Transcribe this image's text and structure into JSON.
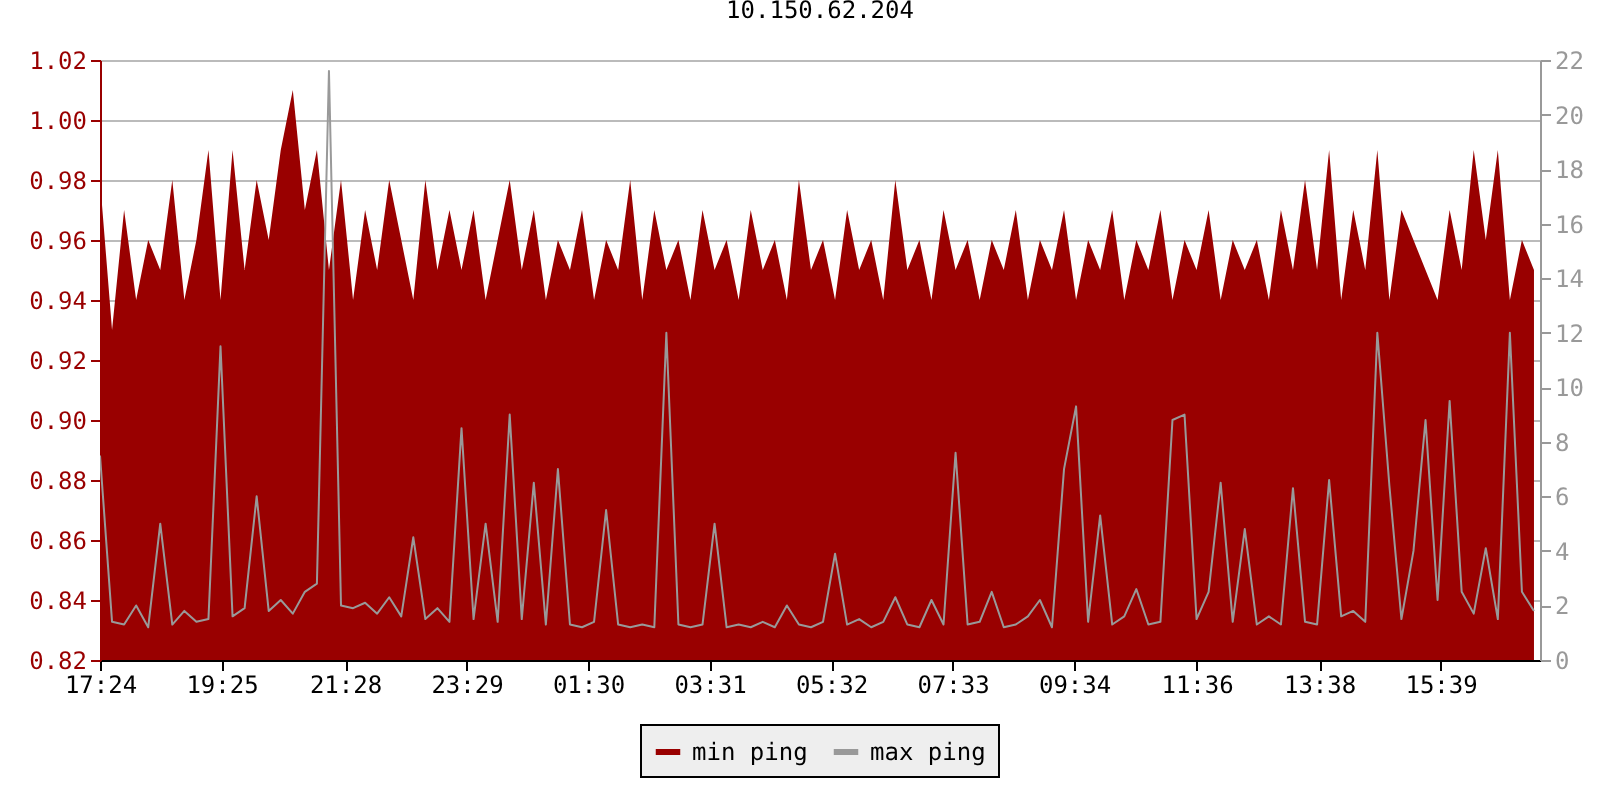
{
  "chart_data": {
    "type": "area",
    "title": "10.150.62.204",
    "x": [
      "--01-01T17:24",
      "--01-01T17:36",
      "--01-01T17:48",
      "--01-01T18:00",
      "--01-01T18:12",
      "--01-01T18:24",
      "--01-01T18:36",
      "--01-01T18:48",
      "--01-01T19:00",
      "--01-01T19:12",
      "--01-01T19:24",
      "--01-01T19:36",
      "--01-01T19:48",
      "--01-01T20:00",
      "--01-01T20:12",
      "--01-01T20:24",
      "--01-01T20:36",
      "--01-01T20:48",
      "--01-01T21:00",
      "--01-01T21:12",
      "--01-01T21:24",
      "--01-01T21:36",
      "--01-01T21:48",
      "--01-01T22:00",
      "--01-01T22:12",
      "--01-01T22:24",
      "--01-01T22:36",
      "--01-01T22:48",
      "--01-01T23:00",
      "--01-01T23:12",
      "--01-01T23:24",
      "--01-01T23:36",
      "--01-01T23:48",
      "--01-02T00:00",
      "--01-02T00:12",
      "--01-02T00:24",
      "--01-02T00:36",
      "--01-02T00:48",
      "--01-02T01:00",
      "--01-02T01:12",
      "--01-02T01:24",
      "--01-02T01:36",
      "--01-02T01:48",
      "--01-02T02:00",
      "--01-02T02:12",
      "--01-02T02:24",
      "--01-02T02:36",
      "--01-02T02:48",
      "--01-02T03:00",
      "--01-02T03:12",
      "--01-02T03:24",
      "--01-02T03:36",
      "--01-02T03:48",
      "--01-02T04:00",
      "--01-02T04:12",
      "--01-02T04:24",
      "--01-02T04:36",
      "--01-02T04:48",
      "--01-02T05:00",
      "--01-02T05:12",
      "--01-02T05:24",
      "--01-02T05:36",
      "--01-02T05:48",
      "--01-02T06:00",
      "--01-02T06:12",
      "--01-02T06:24",
      "--01-02T06:36",
      "--01-02T06:48",
      "--01-02T07:00",
      "--01-02T07:12",
      "--01-02T07:24",
      "--01-02T07:36",
      "--01-02T07:48",
      "--01-02T08:00",
      "--01-02T08:12",
      "--01-02T08:24",
      "--01-02T08:36",
      "--01-02T08:48",
      "--01-02T09:00",
      "--01-02T09:12",
      "--01-02T09:24",
      "--01-02T09:36",
      "--01-02T09:48",
      "--01-02T10:00",
      "--01-02T10:12",
      "--01-02T10:24",
      "--01-02T10:36",
      "--01-02T10:48",
      "--01-02T11:00",
      "--01-02T11:12",
      "--01-02T11:24",
      "--01-02T11:36",
      "--01-02T11:48",
      "--01-02T12:00",
      "--01-02T12:12",
      "--01-02T12:24",
      "--01-02T12:36",
      "--01-02T12:48",
      "--01-02T13:00",
      "--01-02T13:12",
      "--01-02T13:24",
      "--01-02T13:36",
      "--01-02T13:48",
      "--01-02T14:00",
      "--01-02T14:12",
      "--01-02T14:24",
      "--01-02T14:36",
      "--01-02T14:48",
      "--01-02T15:00",
      "--01-02T15:12",
      "--01-02T15:24",
      "--01-02T15:36",
      "--01-02T15:48",
      "--01-02T16:00",
      "--01-02T16:12",
      "--01-02T16:24",
      "--01-02T16:36",
      "--01-02T16:48",
      "--01-02T17:00",
      "--01-02T17:12"
    ],
    "series": [
      {
        "name": "min ping",
        "color": "#990000",
        "values": [
          0.98,
          0.93,
          0.97,
          0.94,
          0.96,
          0.95,
          0.98,
          0.94,
          0.96,
          0.99,
          0.94,
          0.99,
          0.95,
          0.98,
          0.96,
          0.99,
          1.01,
          0.97,
          0.99,
          0.95,
          0.98,
          0.94,
          0.97,
          0.95,
          0.98,
          0.96,
          0.94,
          0.98,
          0.95,
          0.97,
          0.95,
          0.97,
          0.94,
          0.96,
          0.98,
          0.95,
          0.97,
          0.94,
          0.96,
          0.95,
          0.97,
          0.94,
          0.96,
          0.95,
          0.98,
          0.94,
          0.97,
          0.95,
          0.96,
          0.94,
          0.97,
          0.95,
          0.96,
          0.94,
          0.97,
          0.95,
          0.96,
          0.94,
          0.98,
          0.95,
          0.96,
          0.94,
          0.97,
          0.95,
          0.96,
          0.94,
          0.98,
          0.95,
          0.96,
          0.94,
          0.97,
          0.95,
          0.96,
          0.94,
          0.96,
          0.95,
          0.97,
          0.94,
          0.96,
          0.95,
          0.97,
          0.94,
          0.96,
          0.95,
          0.97,
          0.94,
          0.96,
          0.95,
          0.97,
          0.94,
          0.96,
          0.95,
          0.97,
          0.94,
          0.96,
          0.95,
          0.96,
          0.94,
          0.97,
          0.95,
          0.98,
          0.95,
          0.99,
          0.94,
          0.97,
          0.95,
          0.99,
          0.94,
          0.97,
          0.96,
          0.95,
          0.94,
          0.97,
          0.95,
          0.99,
          0.96,
          0.99,
          0.94,
          0.96,
          0.95
        ]
      },
      {
        "name": "max ping",
        "color": "#999999",
        "type": "line",
        "axis": "y2",
        "values": [
          7.5,
          1.4,
          1.3,
          2.0,
          1.2,
          5.0,
          1.3,
          1.8,
          1.4,
          1.5,
          11.5,
          1.6,
          1.9,
          6.0,
          1.8,
          2.2,
          1.7,
          2.5,
          2.8,
          21.6,
          2.0,
          1.9,
          2.1,
          1.7,
          2.3,
          1.6,
          4.5,
          1.5,
          1.9,
          1.4,
          8.5,
          1.5,
          5.0,
          1.4,
          9.0,
          1.5,
          6.5,
          1.3,
          7.0,
          1.3,
          1.2,
          1.4,
          5.5,
          1.3,
          1.2,
          1.3,
          1.2,
          12.0,
          1.3,
          1.2,
          1.3,
          5.0,
          1.2,
          1.3,
          1.2,
          1.4,
          1.2,
          2.0,
          1.3,
          1.2,
          1.4,
          3.9,
          1.3,
          1.5,
          1.2,
          1.4,
          2.3,
          1.3,
          1.2,
          2.2,
          1.3,
          7.6,
          1.3,
          1.4,
          2.5,
          1.2,
          1.3,
          1.6,
          2.2,
          1.2,
          7.0,
          9.3,
          1.4,
          5.3,
          1.3,
          1.6,
          2.6,
          1.3,
          1.4,
          8.8,
          9.0,
          1.5,
          2.5,
          6.5,
          1.4,
          4.8,
          1.3,
          1.6,
          1.3,
          6.3,
          1.4,
          1.3,
          6.6,
          1.6,
          1.8,
          1.4,
          12.0,
          6.4,
          1.5,
          4.0,
          8.8,
          2.2,
          9.5,
          2.5,
          1.7,
          4.1,
          1.5,
          12.0,
          2.5,
          1.8
        ]
      }
    ],
    "xlim": [
      "--01-01T17:24",
      "--01-02T17:18"
    ],
    "xticks": [
      {
        "value": "--01-01T17:24",
        "label": "17:24"
      },
      {
        "value": "--01-01T19:25",
        "label": "19:25"
      },
      {
        "value": "--01-01T21:28",
        "label": "21:28"
      },
      {
        "value": "--01-01T23:29",
        "label": "23:29"
      },
      {
        "value": "--01-02T01:30",
        "label": "01:30"
      },
      {
        "value": "--01-02T03:31",
        "label": "03:31"
      },
      {
        "value": "--01-02T05:32",
        "label": "05:32"
      },
      {
        "value": "--01-02T07:33",
        "label": "07:33"
      },
      {
        "value": "--01-02T09:34",
        "label": "09:34"
      },
      {
        "value": "--01-02T11:36",
        "label": "11:36"
      },
      {
        "value": "--01-02T13:38",
        "label": "13:38"
      },
      {
        "value": "--01-02T15:39",
        "label": "15:39"
      }
    ],
    "ylim": [
      0.82,
      1.02
    ],
    "yticks": [
      {
        "value": 0.82,
        "label": "0.82"
      },
      {
        "value": 0.84,
        "label": "0.84"
      },
      {
        "value": 0.86,
        "label": "0.86"
      },
      {
        "value": 0.88,
        "label": "0.88"
      },
      {
        "value": 0.9,
        "label": "0.90"
      },
      {
        "value": 0.92,
        "label": "0.92"
      },
      {
        "value": 0.94,
        "label": "0.94"
      },
      {
        "value": 0.96,
        "label": "0.96"
      },
      {
        "value": 0.98,
        "label": "0.98"
      },
      {
        "value": 1.0,
        "label": "1.00"
      },
      {
        "value": 1.02,
        "label": "1.02"
      }
    ],
    "y2lim": [
      0,
      22
    ],
    "y2ticks": [
      0,
      2,
      4,
      6,
      8,
      10,
      12,
      14,
      16,
      18,
      20,
      22
    ],
    "grid": "y",
    "legend": "bottom"
  }
}
